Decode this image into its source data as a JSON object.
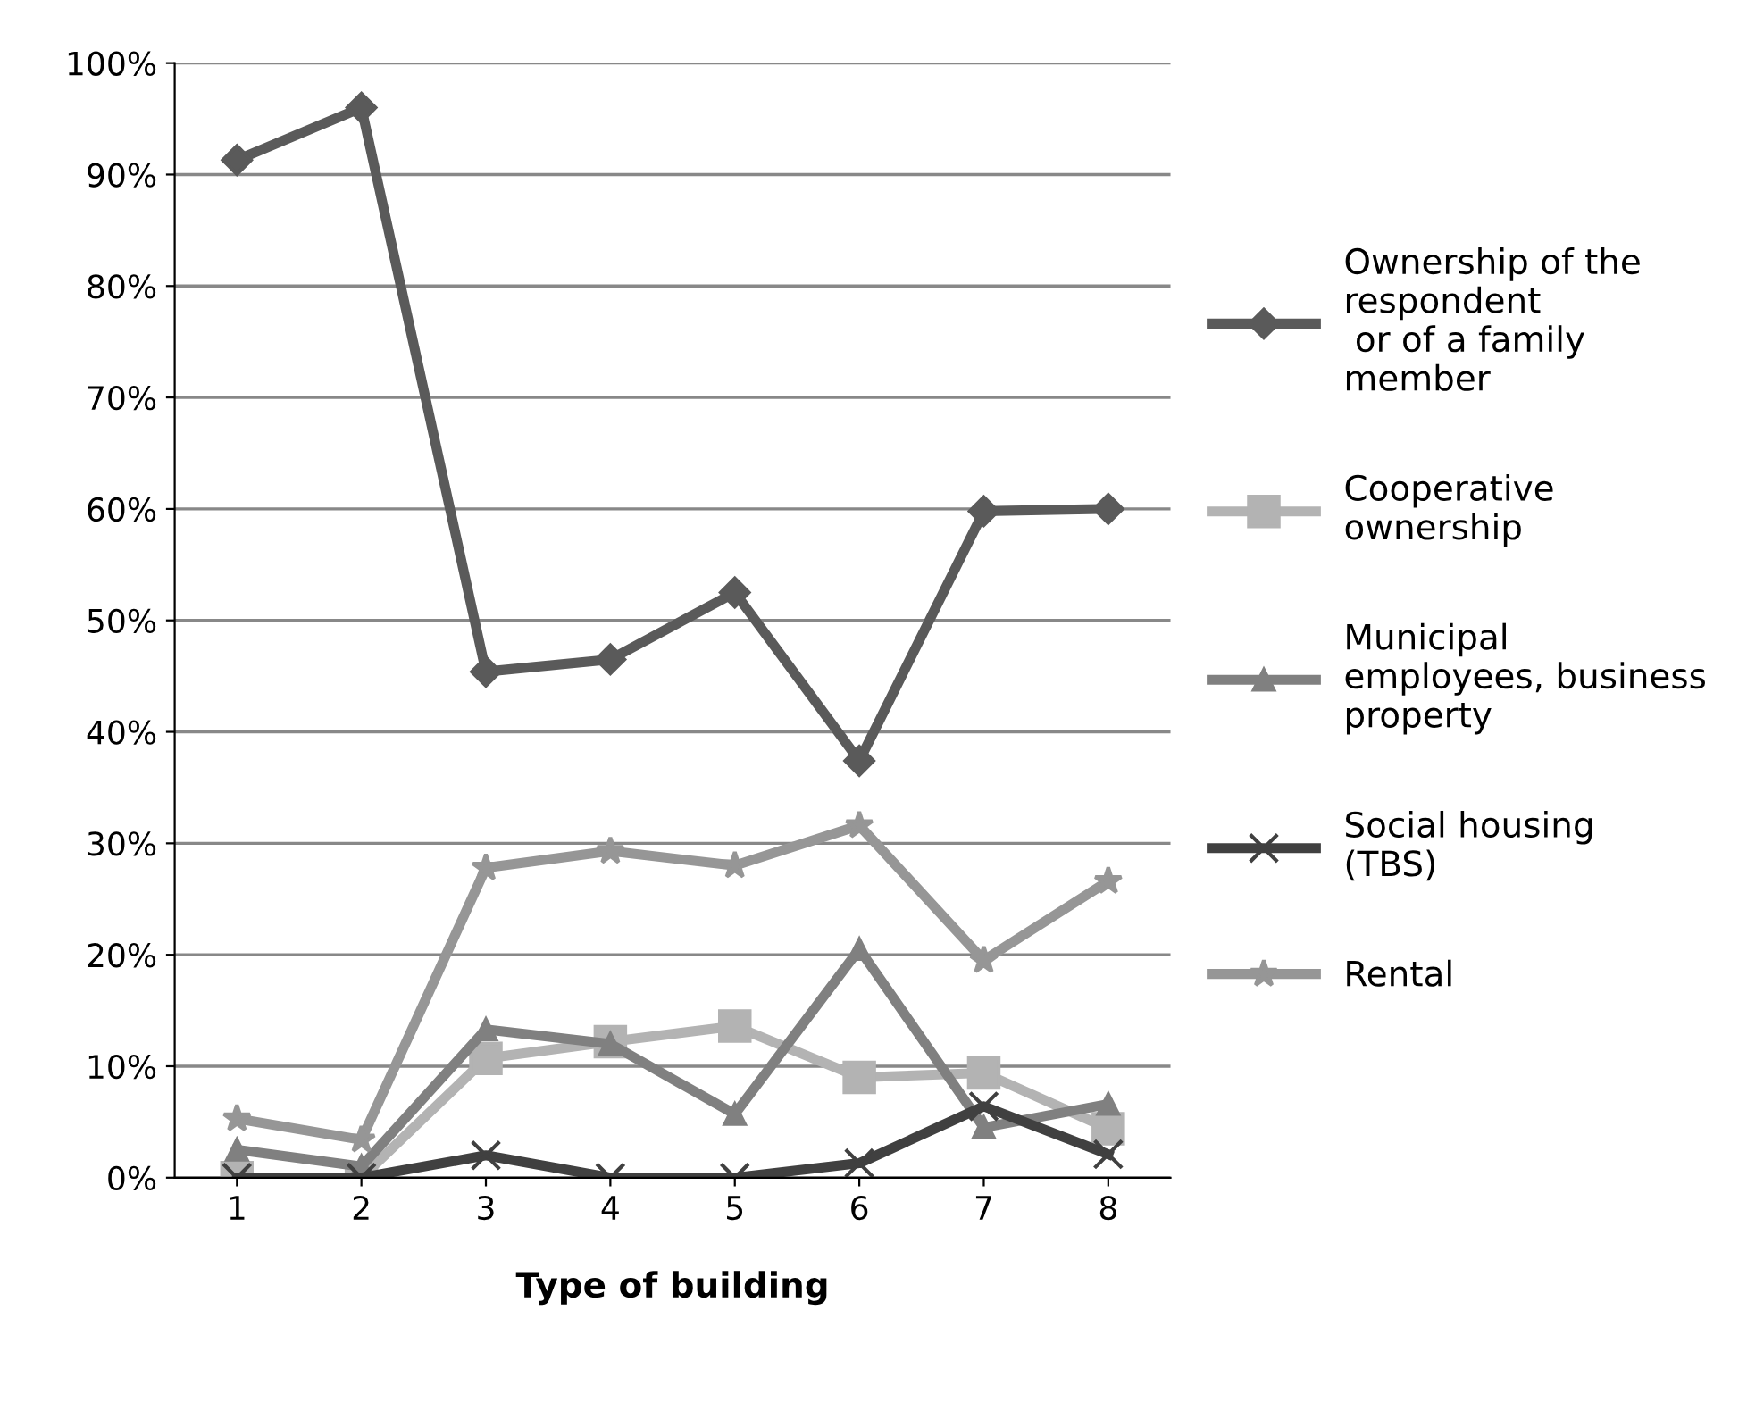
{
  "chart_data": {
    "type": "line",
    "xlabel": "Type of building",
    "categories": [
      "1",
      "2",
      "3",
      "4",
      "5",
      "6",
      "7",
      "8"
    ],
    "series": [
      {
        "name": "Ownership of the\nrespondent\n or of a family\nmember",
        "color": "#5a5a5a",
        "marker": "diamond",
        "values": [
          91.3,
          96,
          45.4,
          46.5,
          52.5,
          37.4,
          59.8,
          60
        ]
      },
      {
        "name": "Cooperative\nownership",
        "color": "#b3b3b3",
        "marker": "square",
        "values": [
          0,
          0,
          10.7,
          12.2,
          13.6,
          9.0,
          9.4,
          4.4
        ]
      },
      {
        "name": "Municipal\nemployees, business\nproperty",
        "color": "#808080",
        "marker": "triangle",
        "values": [
          2.5,
          1.0,
          13.3,
          12.0,
          5.7,
          20.5,
          4.5,
          6.6
        ]
      },
      {
        "name": "Social housing\n(TBS)",
        "color": "#404040",
        "marker": "cross",
        "values": [
          0,
          0,
          2.0,
          0,
          0,
          1.3,
          6.4,
          2.1
        ]
      },
      {
        "name": "Rental",
        "color": "#969696",
        "marker": "star",
        "values": [
          5.3,
          3.4,
          27.8,
          29.3,
          28.0,
          31.6,
          19.5,
          26.6
        ]
      }
    ],
    "ylim": [
      0,
      100
    ],
    "yticks": [
      {
        "value": 0,
        "label": "0%"
      },
      {
        "value": 10,
        "label": "10%"
      },
      {
        "value": 20,
        "label": "20%"
      },
      {
        "value": 30,
        "label": "30%"
      },
      {
        "value": 40,
        "label": "40%"
      },
      {
        "value": 50,
        "label": "50%"
      },
      {
        "value": 60,
        "label": "60%"
      },
      {
        "value": 70,
        "label": "70%"
      },
      {
        "value": 80,
        "label": "80%"
      },
      {
        "value": 90,
        "label": "90%"
      },
      {
        "value": 100,
        "label": "100%"
      }
    ],
    "grid": "y",
    "legend": "right",
    "line_style": "solid"
  }
}
